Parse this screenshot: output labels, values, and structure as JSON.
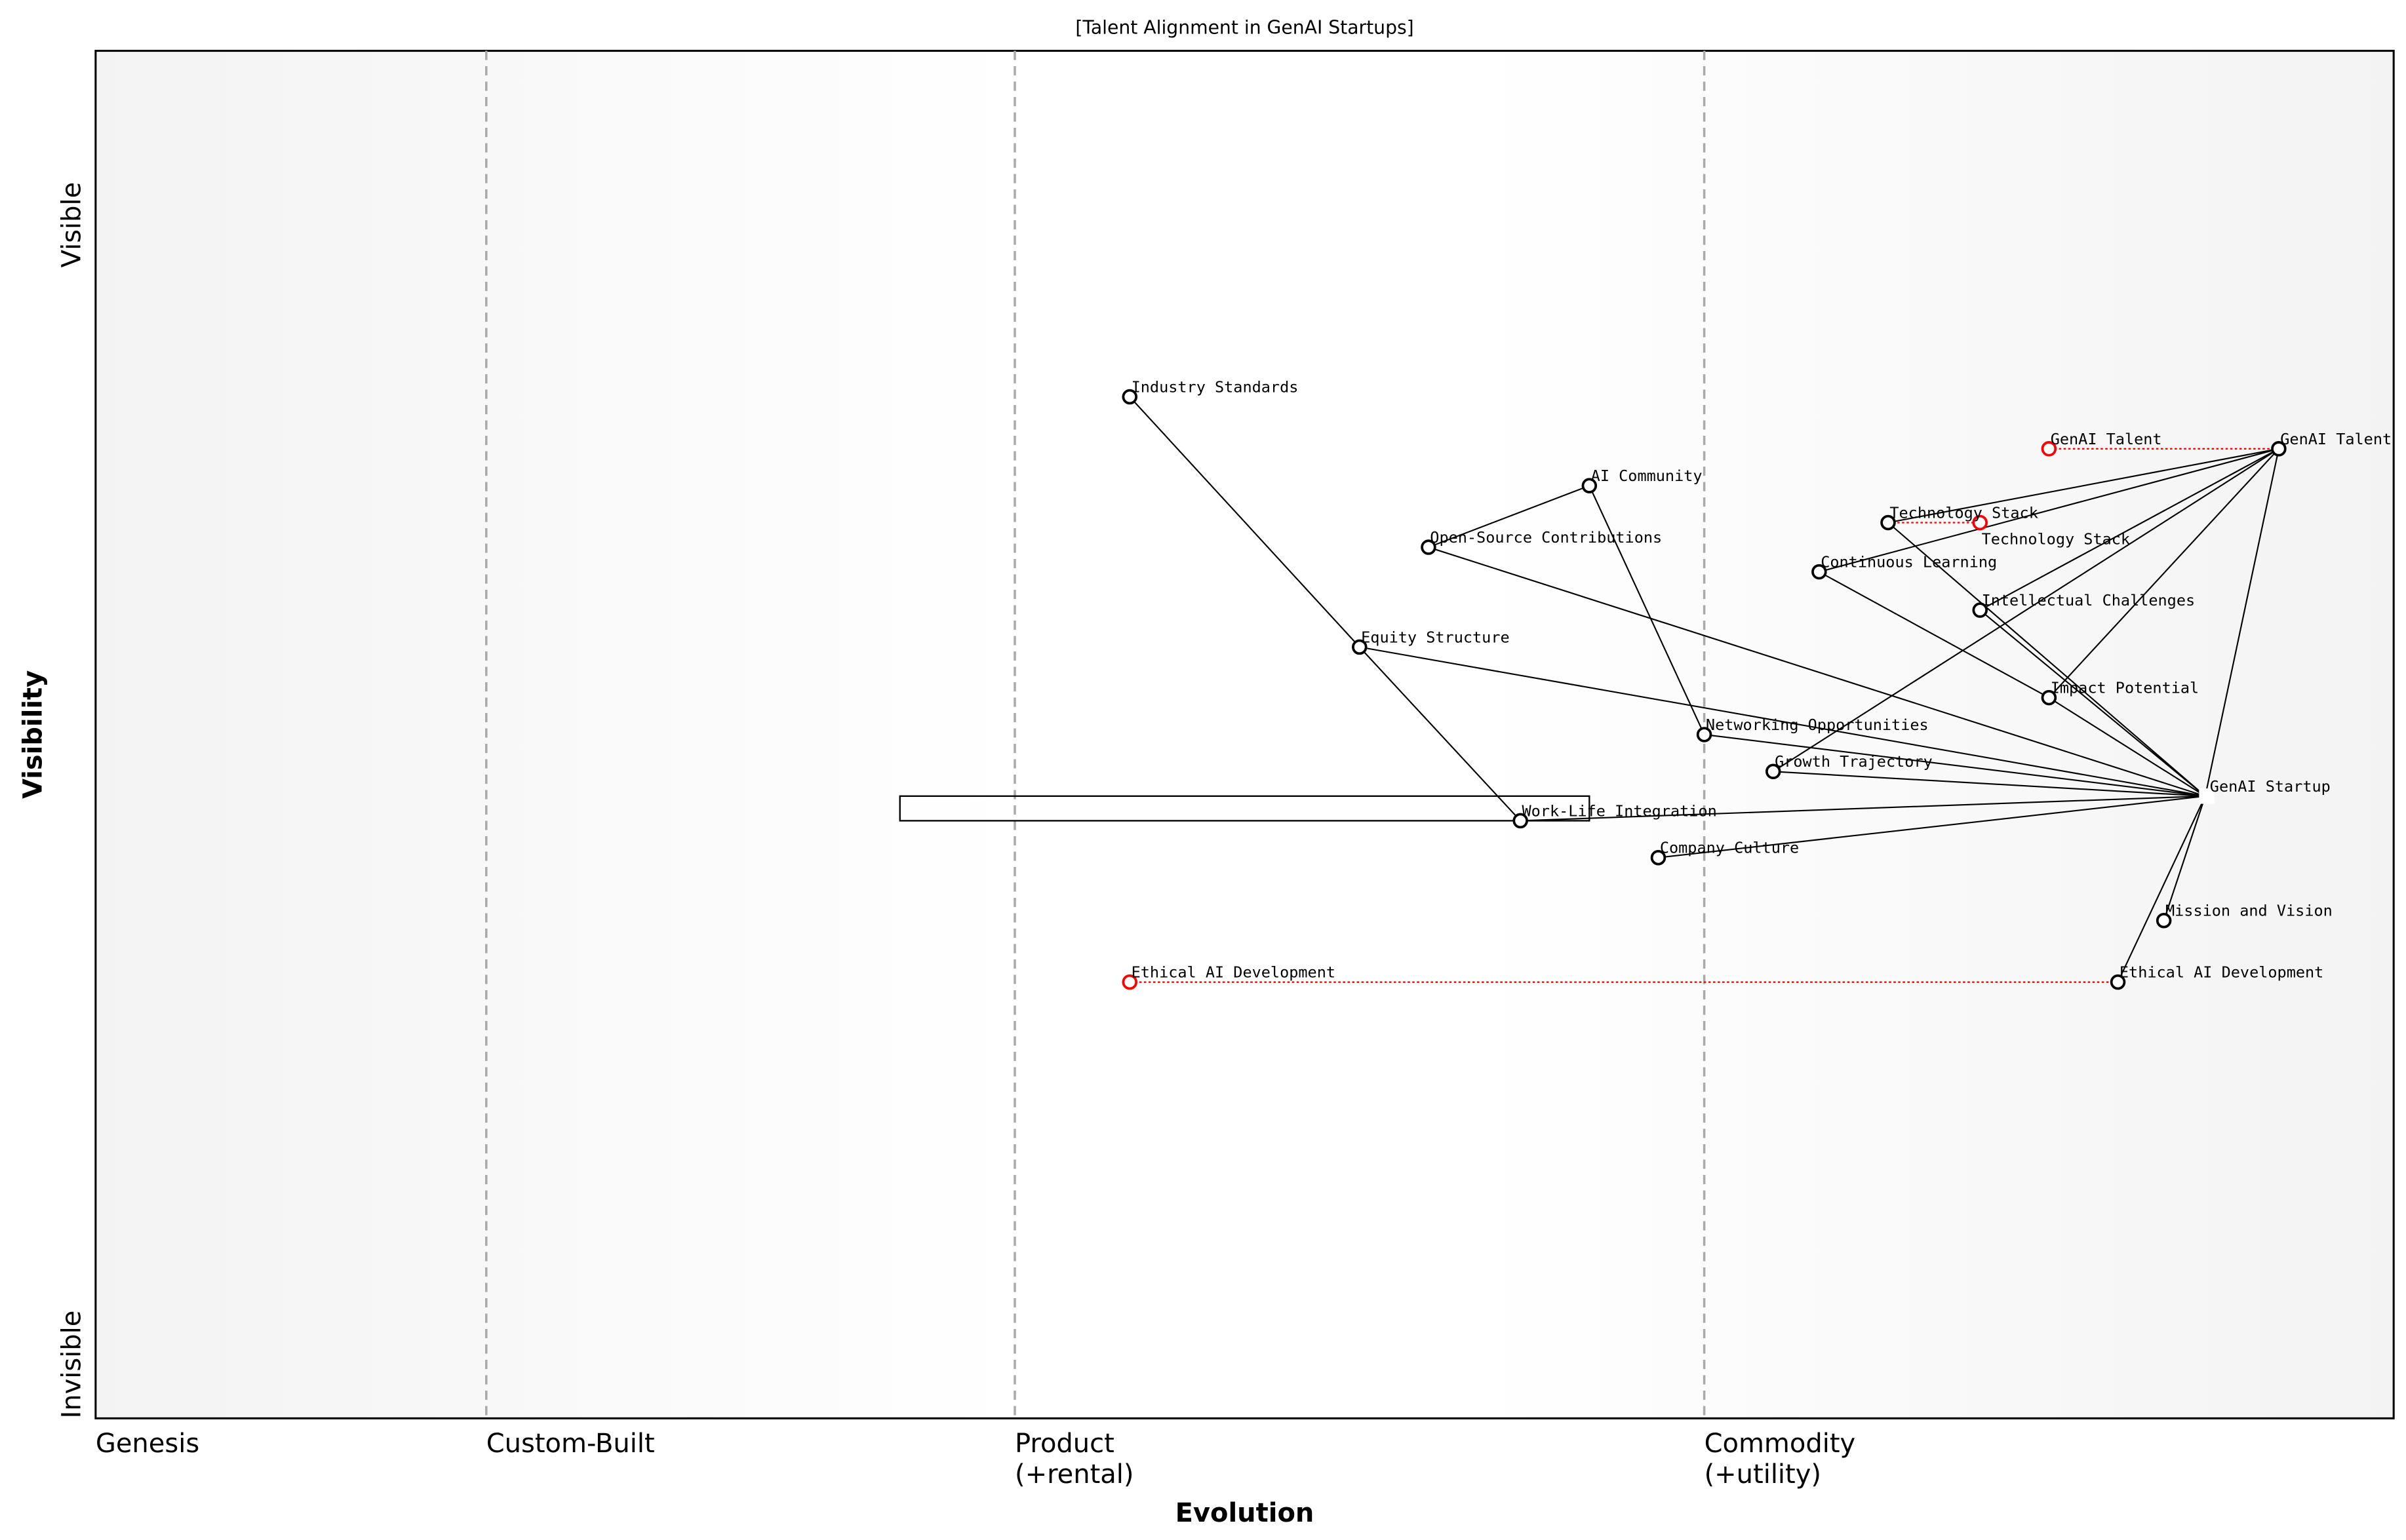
{
  "title": "[Talent Alignment in GenAI Startups]",
  "x_axis": {
    "label": "Evolution",
    "stages": [
      {
        "label": "Genesis",
        "at": 0.0
      },
      {
        "label": "Custom-Built",
        "at": 0.17
      },
      {
        "label": "Product",
        "sub": "(+rental)",
        "at": 0.4
      },
      {
        "label": "Commodity",
        "sub": "(+utility)",
        "at": 0.7
      }
    ]
  },
  "y_axis": {
    "label": "Visibility",
    "top": "Visible",
    "bottom": "Invisible"
  },
  "colors": {
    "node": "#000000",
    "evolve": "#ff0000",
    "divider": "#aaaaaa"
  },
  "components": [
    {
      "name": "Industry Standards",
      "evolution": 0.45,
      "visibility": 0.747
    },
    {
      "name": "AI Community",
      "evolution": 0.65,
      "visibility": 0.682
    },
    {
      "name": "Open-Source Contributions",
      "evolution": 0.58,
      "visibility": 0.637
    },
    {
      "name": "Equity Structure",
      "evolution": 0.55,
      "visibility": 0.564
    },
    {
      "name": "Networking Opportunities",
      "evolution": 0.7,
      "visibility": 0.5
    },
    {
      "name": "Growth Trajectory",
      "evolution": 0.73,
      "visibility": 0.473
    },
    {
      "name": "Work-Life Integration",
      "evolution": 0.62,
      "visibility": 0.437
    },
    {
      "name": "Company Culture",
      "evolution": 0.68,
      "visibility": 0.41
    },
    {
      "name": "GenAI Talent",
      "evolution": 0.95,
      "visibility": 0.709
    },
    {
      "name": "Technology Stack",
      "evolution": 0.78,
      "visibility": 0.655
    },
    {
      "name": "Continuous Learning",
      "evolution": 0.75,
      "visibility": 0.619
    },
    {
      "name": "Intellectual Challenges",
      "evolution": 0.82,
      "visibility": 0.591
    },
    {
      "name": "Impact Potential",
      "evolution": 0.85,
      "visibility": 0.527
    },
    {
      "name": "Mission and Vision",
      "evolution": 0.9,
      "visibility": 0.364
    },
    {
      "name": "Ethical AI Development",
      "evolution": 0.88,
      "visibility": 0.319
    }
  ],
  "anchors": [
    {
      "name": "GenAI Startup",
      "evolution": 0.918,
      "visibility": 0.455
    }
  ],
  "evolutions": [
    {
      "name": "GenAI Talent",
      "from": 0.95,
      "to": 0.85,
      "visibility": 0.709
    },
    {
      "name": "Technology Stack",
      "from": 0.78,
      "to": 0.82,
      "visibility": 0.655
    },
    {
      "name": "Ethical AI Development",
      "from": 0.88,
      "to": 0.45,
      "visibility": 0.319
    }
  ],
  "pipelines": [
    {
      "evolution_start": 0.35,
      "evolution_end": 0.65,
      "visibility": 0.446
    }
  ],
  "links": [
    [
      "Industry Standards",
      "Equity Structure"
    ],
    [
      "Equity Structure",
      "Work-Life Integration"
    ],
    [
      "Open-Source Contributions",
      "AI Community"
    ],
    [
      "AI Community",
      "Networking Opportunities"
    ],
    [
      "Open-Source Contributions",
      "GenAI Startup"
    ],
    [
      "Equity Structure",
      "GenAI Startup"
    ],
    [
      "Networking Opportunities",
      "GenAI Startup"
    ],
    [
      "Growth Trajectory",
      "GenAI Startup"
    ],
    [
      "Work-Life Integration",
      "GenAI Startup"
    ],
    [
      "Company Culture",
      "GenAI Startup"
    ],
    [
      "Mission and Vision",
      "GenAI Startup"
    ],
    [
      "Ethical AI Development",
      "GenAI Startup"
    ],
    [
      "GenAI Startup",
      "GenAI Talent"
    ],
    [
      "GenAI Talent",
      "Technology Stack"
    ],
    [
      "GenAI Talent",
      "Continuous Learning"
    ],
    [
      "GenAI Talent",
      "Intellectual Challenges"
    ],
    [
      "GenAI Talent",
      "Growth Trajectory"
    ],
    [
      "GenAI Talent",
      "Impact Potential"
    ],
    [
      "Technology Stack",
      "GenAI Startup"
    ],
    [
      "Intellectual Challenges",
      "GenAI Startup"
    ],
    [
      "Continuous Learning",
      "Impact Potential"
    ],
    [
      "Impact Potential",
      "GenAI Startup"
    ]
  ]
}
